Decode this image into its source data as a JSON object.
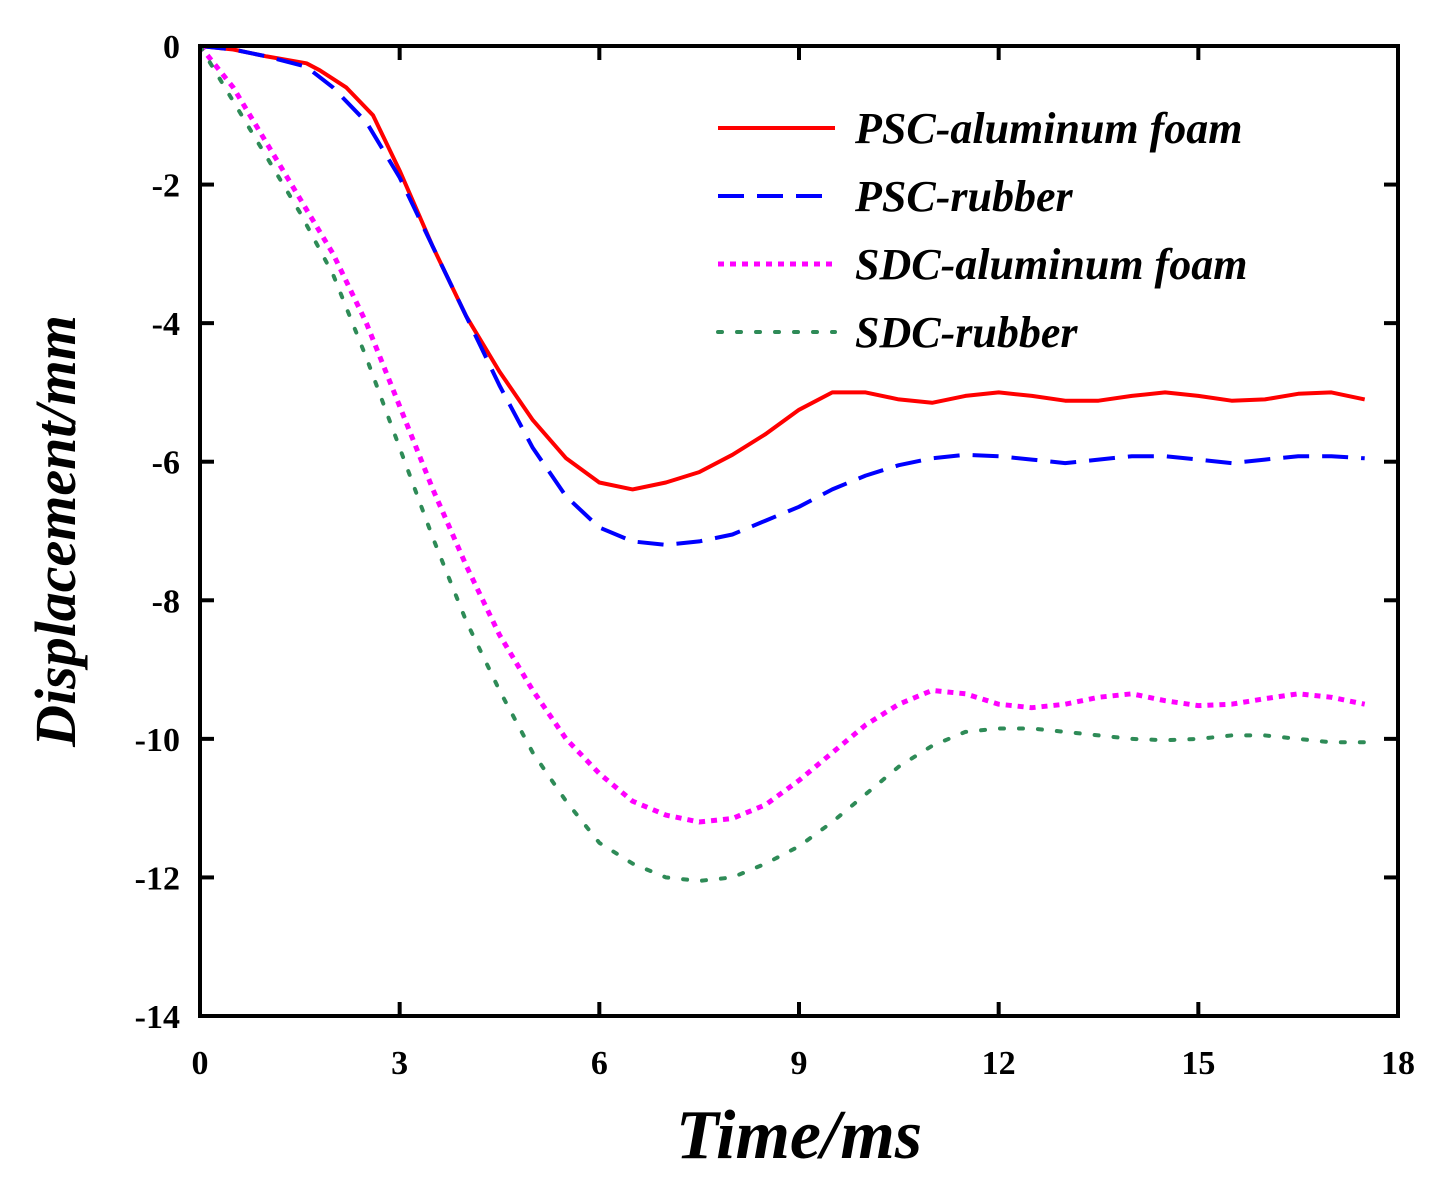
{
  "chart_data": {
    "type": "line",
    "title": "",
    "xlabel": "Time/ms",
    "ylabel": "Displacement/mm",
    "xlim": [
      0,
      18
    ],
    "ylim": [
      -14,
      0
    ],
    "xticks": [
      0,
      3,
      6,
      9,
      12,
      15,
      18
    ],
    "yticks": [
      0,
      -2,
      -4,
      -6,
      -8,
      -10,
      -12,
      -14
    ],
    "legend_position": "top-right",
    "grid": false,
    "series": [
      {
        "name": "PSC-aluminum foam",
        "color": "#ff0000",
        "style": "solid",
        "x": [
          0,
          0.5,
          1,
          1.6,
          1.8,
          2.2,
          2.6,
          3,
          3.5,
          4,
          4.5,
          5,
          5.5,
          6,
          6.5,
          7,
          7.5,
          8,
          8.5,
          9,
          9.5,
          10,
          10.5,
          11,
          11.5,
          12,
          12.5,
          13,
          13.5,
          14,
          14.5,
          15,
          15.5,
          16,
          16.5,
          17,
          17.5
        ],
        "y": [
          0,
          -0.05,
          -0.15,
          -0.25,
          -0.35,
          -0.6,
          -1.0,
          -1.8,
          -2.9,
          -3.9,
          -4.7,
          -5.4,
          -5.95,
          -6.3,
          -6.4,
          -6.3,
          -6.15,
          -5.9,
          -5.6,
          -5.25,
          -5.0,
          -5.0,
          -5.1,
          -5.15,
          -5.05,
          -5.0,
          -5.05,
          -5.12,
          -5.12,
          -5.05,
          -5.0,
          -5.05,
          -5.12,
          -5.1,
          -5.02,
          -5.0,
          -5.1
        ]
      },
      {
        "name": "PSC-rubber",
        "color": "#0000ff",
        "style": "dashed",
        "x": [
          0,
          0.5,
          1,
          1.6,
          2,
          2.5,
          3,
          3.5,
          4,
          4.5,
          5,
          5.5,
          6,
          6.5,
          7,
          7.5,
          8,
          8.5,
          9,
          9.5,
          10,
          10.5,
          11,
          11.5,
          12,
          12.5,
          13,
          13.5,
          14,
          14.5,
          15,
          15.5,
          16,
          16.5,
          17,
          17.5
        ],
        "y": [
          0,
          -0.05,
          -0.15,
          -0.3,
          -0.6,
          -1.1,
          -1.9,
          -2.9,
          -3.9,
          -4.9,
          -5.8,
          -6.5,
          -6.95,
          -7.15,
          -7.2,
          -7.15,
          -7.05,
          -6.85,
          -6.65,
          -6.4,
          -6.2,
          -6.05,
          -5.95,
          -5.9,
          -5.92,
          -5.97,
          -6.02,
          -5.97,
          -5.92,
          -5.92,
          -5.97,
          -6.02,
          -5.97,
          -5.92,
          -5.92,
          -5.95
        ]
      },
      {
        "name": "SDC-aluminum foam",
        "color": "#ff00ff",
        "style": "dotted",
        "x": [
          0,
          0.5,
          1,
          1.5,
          2,
          2.5,
          3,
          3.5,
          4,
          4.5,
          5,
          5.5,
          6,
          6.5,
          7,
          7.5,
          8,
          8.5,
          9,
          9.5,
          10,
          10.5,
          11,
          11.5,
          12,
          12.5,
          13,
          13.5,
          14,
          14.5,
          15,
          15.5,
          16,
          16.5,
          17,
          17.5
        ],
        "y": [
          0,
          -0.6,
          -1.4,
          -2.2,
          -3.0,
          -4.0,
          -5.2,
          -6.4,
          -7.5,
          -8.5,
          -9.3,
          -10.0,
          -10.5,
          -10.9,
          -11.1,
          -11.2,
          -11.15,
          -10.95,
          -10.6,
          -10.2,
          -9.8,
          -9.5,
          -9.3,
          -9.35,
          -9.5,
          -9.55,
          -9.5,
          -9.4,
          -9.35,
          -9.45,
          -9.52,
          -9.5,
          -9.42,
          -9.35,
          -9.4,
          -9.5
        ]
      },
      {
        "name": "SDC-rubber",
        "color": "#2e8b57",
        "style": "sparse-dotted",
        "x": [
          0,
          0.5,
          1,
          1.5,
          2,
          2.5,
          3,
          3.5,
          4,
          4.5,
          5,
          5.5,
          6,
          6.5,
          7,
          7.5,
          8,
          8.5,
          9,
          9.5,
          10,
          10.5,
          11,
          11.5,
          12,
          12.5,
          13,
          13.5,
          14,
          14.5,
          15,
          15.5,
          16,
          16.5,
          17,
          17.5
        ],
        "y": [
          0,
          -0.8,
          -1.6,
          -2.4,
          -3.3,
          -4.5,
          -5.8,
          -7.1,
          -8.3,
          -9.3,
          -10.2,
          -10.9,
          -11.5,
          -11.8,
          -12.0,
          -12.05,
          -12.0,
          -11.8,
          -11.55,
          -11.2,
          -10.8,
          -10.4,
          -10.1,
          -9.9,
          -9.85,
          -9.85,
          -9.9,
          -9.95,
          -10.0,
          -10.02,
          -10.0,
          -9.95,
          -9.95,
          -10.0,
          -10.05,
          -10.05
        ]
      }
    ]
  }
}
